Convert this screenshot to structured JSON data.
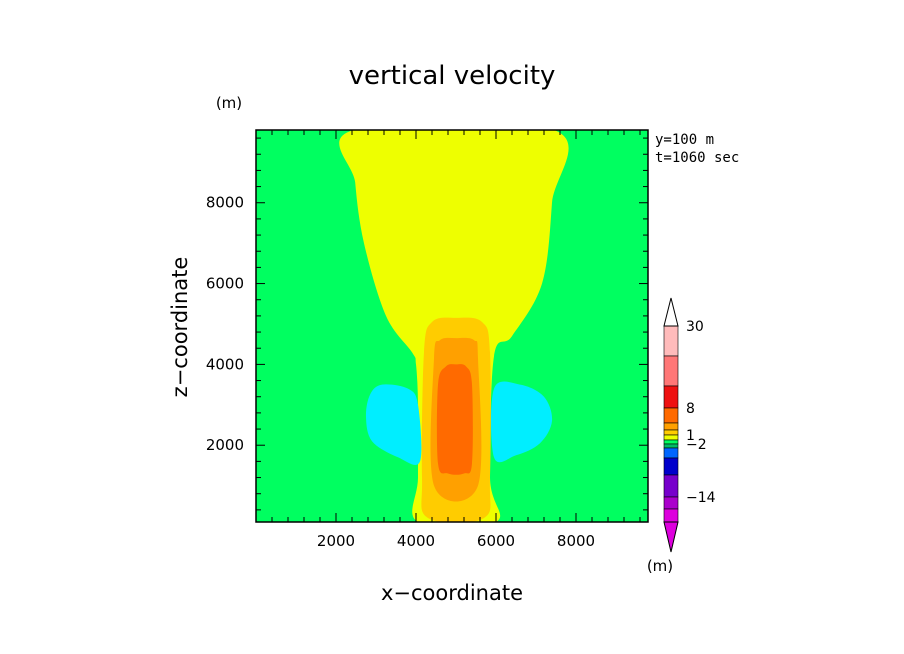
{
  "chart_data": {
    "type": "heatmap",
    "title": "vertical velocity",
    "xlabel": "x−coordinate",
    "ylabel": "z−coordinate",
    "y_unit": "(m)",
    "xlim": [
      0,
      9800
    ],
    "ylim": [
      100,
      9800
    ],
    "x_ticks": [
      2000,
      4000,
      6000,
      8000
    ],
    "y_ticks": [
      2000,
      4000,
      6000,
      8000
    ],
    "x_tick_labels": [
      "2000",
      "4000",
      "6000",
      "8000"
    ],
    "y_tick_labels": [
      "2000",
      "4000",
      "6000",
      "8000"
    ],
    "annotations": [
      "y=100 m",
      "t=1060 sec"
    ],
    "background_color": "#00ff60",
    "regions": [
      {
        "name": "yellow",
        "color": "#eeff00",
        "points": [
          [
            2450,
            9800
          ],
          [
            7450,
            9800
          ],
          [
            7400,
            8000
          ],
          [
            7150,
            6000
          ],
          [
            6400,
            4700
          ],
          [
            5950,
            4200
          ],
          [
            5850,
            1200
          ],
          [
            6000,
            100
          ],
          [
            4050,
            100
          ],
          [
            4050,
            1200
          ],
          [
            4050,
            3000
          ],
          [
            4000,
            4000
          ],
          [
            3900,
            4300
          ],
          [
            3250,
            5200
          ],
          [
            2700,
            7000
          ],
          [
            2480,
            8500
          ]
        ]
      },
      {
        "name": "cyan-left",
        "color": "#00eeff",
        "points": [
          [
            3150,
            3500
          ],
          [
            3800,
            3400
          ],
          [
            4050,
            3000
          ],
          [
            4100,
            1600
          ],
          [
            3550,
            1700
          ],
          [
            2900,
            2100
          ],
          [
            2750,
            2700
          ],
          [
            2850,
            3250
          ]
        ]
      },
      {
        "name": "cyan-right",
        "color": "#00eeff",
        "points": [
          [
            5950,
            3400
          ],
          [
            6600,
            3500
          ],
          [
            7200,
            3200
          ],
          [
            7400,
            2600
          ],
          [
            7100,
            2050
          ],
          [
            6500,
            1750
          ],
          [
            5950,
            1700
          ]
        ]
      },
      {
        "name": "light-orange",
        "color": "#ffcc00",
        "points": [
          [
            4200,
            4300
          ],
          [
            4400,
            5050
          ],
          [
            5000,
            5150
          ],
          [
            5650,
            5050
          ],
          [
            5850,
            4300
          ],
          [
            5850,
            1200
          ],
          [
            5700,
            200
          ],
          [
            4300,
            200
          ],
          [
            4150,
            1200
          ]
        ]
      },
      {
        "name": "orange",
        "color": "#ffa000",
        "points": [
          [
            4450,
            4150
          ],
          [
            4600,
            4600
          ],
          [
            5000,
            4650
          ],
          [
            5450,
            4600
          ],
          [
            5550,
            4150
          ],
          [
            5550,
            1000
          ],
          [
            4450,
            1000
          ]
        ]
      },
      {
        "name": "red-orange",
        "color": "#ff6a00",
        "points": [
          [
            4550,
            3500
          ],
          [
            4750,
            3950
          ],
          [
            5000,
            4000
          ],
          [
            5250,
            3950
          ],
          [
            5400,
            3500
          ],
          [
            5400,
            1550
          ],
          [
            5200,
            1300
          ],
          [
            4800,
            1300
          ],
          [
            4550,
            1550
          ]
        ]
      }
    ],
    "colorbar": {
      "unit": "(m)",
      "labels": [
        "30",
        "8",
        "1",
        "−2",
        "−14"
      ],
      "top_color": "#ffffff",
      "bottom_color": "#dd00dd",
      "segments": [
        {
          "color": "#ffbbbb"
        },
        {
          "color": "#ff7777"
        },
        {
          "color": "#ee1111"
        },
        {
          "color": "#ff6a00"
        },
        {
          "color": "#ffa000"
        },
        {
          "color": "#ffcc00"
        },
        {
          "color": "#eeff00"
        },
        {
          "color": "#00ff60"
        },
        {
          "color": "#00bb66"
        },
        {
          "color": "#0066ff"
        },
        {
          "color": "#0000cc"
        },
        {
          "color": "#7700cc"
        },
        {
          "color": "#aa00cc"
        },
        {
          "color": "#dd00dd"
        }
      ]
    }
  }
}
